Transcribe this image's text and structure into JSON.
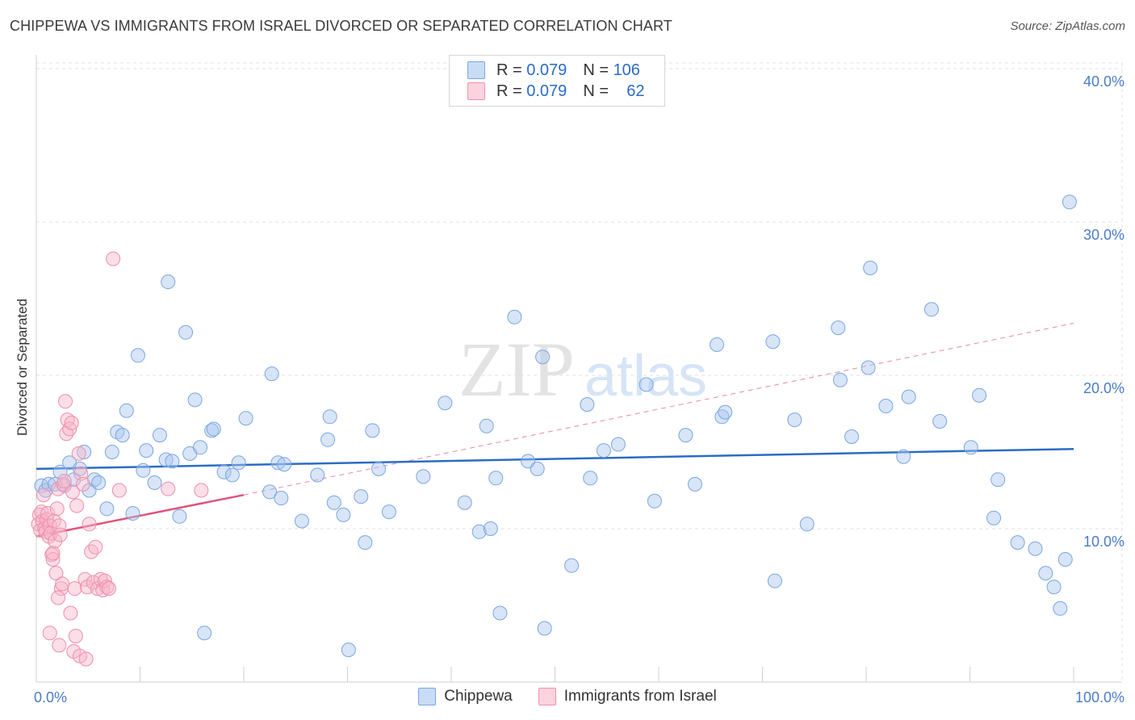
{
  "title": "CHIPPEWA VS IMMIGRANTS FROM ISRAEL DIVORCED OR SEPARATED CORRELATION CHART",
  "source": "Source: ZipAtlas.com",
  "watermark": {
    "zip": "ZIP",
    "atlas": "atlas"
  },
  "legend_top": {
    "rows": [
      {
        "r_label": "R =",
        "r_value": "0.079",
        "n_label": "N =",
        "n_value": "106",
        "color": "#a9c6ee"
      },
      {
        "r_label": "R =",
        "r_value": "0.079",
        "n_label": "N =",
        "n_value": "62",
        "color": "#f6b6c9"
      }
    ]
  },
  "chart_data": {
    "type": "scatter",
    "xlabel": "",
    "ylabel": "Divorced or Separated",
    "xlim": [
      0,
      100
    ],
    "ylim": [
      0,
      40
    ],
    "x_tick_labels": [
      "0.0%",
      "100.0%"
    ],
    "y_ticks": [
      10,
      20,
      30,
      40
    ],
    "y_tick_labels": [
      "10.0%",
      "20.0%",
      "30.0%",
      "40.0%"
    ],
    "grid": true,
    "legend_position": "bottom",
    "series": [
      {
        "name": "Chippewa",
        "color": "#a9c6ee",
        "stroke": "#7aa6e0",
        "trend": {
          "x": [
            0,
            100
          ],
          "y": [
            13.9,
            15.2
          ],
          "color": "#2b6cc4"
        },
        "points": [
          [
            0.5,
            12.8
          ],
          [
            0.9,
            12.5
          ],
          [
            1.2,
            12.9
          ],
          [
            1.8,
            12.9
          ],
          [
            2.3,
            13.7
          ],
          [
            2.7,
            12.8
          ],
          [
            3.2,
            14.3
          ],
          [
            3.6,
            13.2
          ],
          [
            4.2,
            13.9
          ],
          [
            4.6,
            15.0
          ],
          [
            5.1,
            12.5
          ],
          [
            5.6,
            13.2
          ],
          [
            6.0,
            13.0
          ],
          [
            6.8,
            11.3
          ],
          [
            7.3,
            15.0
          ],
          [
            7.8,
            16.3
          ],
          [
            8.3,
            16.1
          ],
          [
            8.7,
            17.7
          ],
          [
            9.3,
            11.0
          ],
          [
            9.8,
            21.3
          ],
          [
            10.3,
            13.8
          ],
          [
            10.6,
            15.1
          ],
          [
            11.4,
            13.0
          ],
          [
            11.9,
            16.1
          ],
          [
            12.5,
            14.5
          ],
          [
            12.7,
            26.1
          ],
          [
            13.1,
            14.4
          ],
          [
            13.8,
            10.8
          ],
          [
            14.4,
            22.8
          ],
          [
            14.8,
            14.9
          ],
          [
            15.3,
            18.4
          ],
          [
            15.8,
            15.3
          ],
          [
            16.2,
            3.2
          ],
          [
            16.9,
            16.4
          ],
          [
            17.1,
            16.5
          ],
          [
            18.1,
            13.7
          ],
          [
            18.9,
            13.5
          ],
          [
            19.5,
            14.3
          ],
          [
            20.2,
            17.2
          ],
          [
            22.5,
            12.4
          ],
          [
            22.7,
            20.1
          ],
          [
            23.3,
            14.3
          ],
          [
            23.6,
            12.0
          ],
          [
            23.9,
            14.2
          ],
          [
            25.6,
            10.5
          ],
          [
            27.1,
            13.5
          ],
          [
            28.1,
            15.8
          ],
          [
            28.3,
            17.3
          ],
          [
            28.7,
            11.7
          ],
          [
            29.6,
            10.9
          ],
          [
            30.1,
            2.1
          ],
          [
            31.3,
            12.1
          ],
          [
            31.7,
            9.1
          ],
          [
            32.4,
            16.4
          ],
          [
            33.0,
            13.9
          ],
          [
            34.0,
            11.1
          ],
          [
            37.3,
            13.4
          ],
          [
            39.4,
            18.2
          ],
          [
            41.3,
            11.7
          ],
          [
            42.7,
            9.8
          ],
          [
            43.4,
            16.7
          ],
          [
            43.8,
            10.0
          ],
          [
            44.3,
            13.3
          ],
          [
            44.7,
            4.5
          ],
          [
            46.1,
            23.8
          ],
          [
            47.4,
            14.4
          ],
          [
            48.3,
            13.9
          ],
          [
            48.8,
            21.2
          ],
          [
            49.0,
            3.5
          ],
          [
            51.6,
            7.6
          ],
          [
            53.1,
            18.1
          ],
          [
            53.4,
            13.3
          ],
          [
            54.7,
            15.1
          ],
          [
            56.1,
            15.5
          ],
          [
            58.8,
            19.4
          ],
          [
            59.6,
            11.8
          ],
          [
            62.6,
            16.1
          ],
          [
            63.5,
            12.9
          ],
          [
            65.6,
            22.0
          ],
          [
            66.1,
            17.3
          ],
          [
            66.4,
            17.6
          ],
          [
            71.0,
            22.2
          ],
          [
            71.2,
            6.6
          ],
          [
            73.1,
            17.1
          ],
          [
            74.3,
            10.3
          ],
          [
            77.3,
            23.1
          ],
          [
            77.5,
            19.7
          ],
          [
            78.6,
            16.0
          ],
          [
            80.2,
            20.5
          ],
          [
            80.4,
            27.0
          ],
          [
            81.9,
            18.0
          ],
          [
            83.6,
            14.7
          ],
          [
            84.1,
            18.6
          ],
          [
            86.3,
            24.3
          ],
          [
            87.1,
            17.0
          ],
          [
            90.1,
            15.3
          ],
          [
            90.9,
            18.7
          ],
          [
            92.3,
            10.7
          ],
          [
            92.7,
            13.2
          ],
          [
            94.6,
            9.1
          ],
          [
            96.3,
            8.7
          ],
          [
            97.3,
            7.1
          ],
          [
            98.1,
            6.2
          ],
          [
            98.7,
            4.8
          ],
          [
            99.2,
            8.0
          ],
          [
            99.6,
            31.3
          ]
        ]
      },
      {
        "name": "Immigrants from Israel",
        "color": "#f6b6c9",
        "stroke": "#ef8fab",
        "trend": {
          "x": [
            0,
            20
          ],
          "y": [
            9.5,
            12.2
          ],
          "color": "#e0547c"
        },
        "trend_ext": {
          "x": [
            20,
            100
          ],
          "y": [
            12.2,
            23.4
          ],
          "color": "#e88aa6"
        },
        "points": [
          [
            0.2,
            10.3
          ],
          [
            0.3,
            10.9
          ],
          [
            0.4,
            9.9
          ],
          [
            0.5,
            11.1
          ],
          [
            0.6,
            10.5
          ],
          [
            0.7,
            12.2
          ],
          [
            0.8,
            10.0
          ],
          [
            0.9,
            9.8
          ],
          [
            1.0,
            10.6
          ],
          [
            1.1,
            11.0
          ],
          [
            1.2,
            9.5
          ],
          [
            1.3,
            10.2
          ],
          [
            1.4,
            9.7
          ],
          [
            1.5,
            8.3
          ],
          [
            1.6,
            8.0
          ],
          [
            1.7,
            10.5
          ],
          [
            1.8,
            9.2
          ],
          [
            1.9,
            7.1
          ],
          [
            2.0,
            11.3
          ],
          [
            2.1,
            12.6
          ],
          [
            2.2,
            10.2
          ],
          [
            2.3,
            9.6
          ],
          [
            2.4,
            6.1
          ],
          [
            2.5,
            6.4
          ],
          [
            2.6,
            12.9
          ],
          [
            2.7,
            13.1
          ],
          [
            2.8,
            18.3
          ],
          [
            2.9,
            16.2
          ],
          [
            3.0,
            17.1
          ],
          [
            3.2,
            16.5
          ],
          [
            3.4,
            16.9
          ],
          [
            3.5,
            12.4
          ],
          [
            3.7,
            6.1
          ],
          [
            3.9,
            11.5
          ],
          [
            4.1,
            14.9
          ],
          [
            4.3,
            13.6
          ],
          [
            4.5,
            12.9
          ],
          [
            4.7,
            6.7
          ],
          [
            4.9,
            6.2
          ],
          [
            5.1,
            10.3
          ],
          [
            5.3,
            8.5
          ],
          [
            5.5,
            6.5
          ],
          [
            5.7,
            8.8
          ],
          [
            5.9,
            6.1
          ],
          [
            6.2,
            6.7
          ],
          [
            6.4,
            6.0
          ],
          [
            6.6,
            6.6
          ],
          [
            6.8,
            6.2
          ],
          [
            7.0,
            6.1
          ],
          [
            7.4,
            27.6
          ],
          [
            8.0,
            12.5
          ],
          [
            1.3,
            3.2
          ],
          [
            2.2,
            2.4
          ],
          [
            3.6,
            2.0
          ],
          [
            3.8,
            3.0
          ],
          [
            4.2,
            1.7
          ],
          [
            4.8,
            1.5
          ],
          [
            1.6,
            8.4
          ],
          [
            2.1,
            5.5
          ],
          [
            3.3,
            4.5
          ],
          [
            12.7,
            12.6
          ],
          [
            15.9,
            12.5
          ]
        ]
      }
    ]
  },
  "legend_bottom": [
    {
      "label": "Chippewa",
      "color": "#a9c6ee"
    },
    {
      "label": "Immigrants from Israel",
      "color": "#f6b6c9"
    }
  ]
}
